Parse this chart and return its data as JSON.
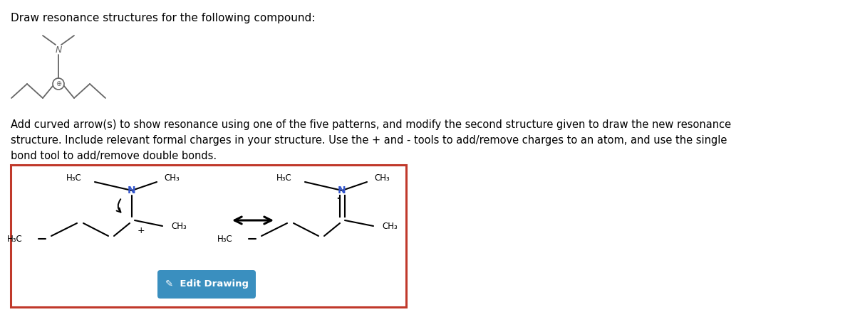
{
  "title_text": "Draw resonance structures for the following compound:",
  "body_text1": "Add curved arrow(s) to show resonance using one of the five patterns, and modify the second structure given to draw the new resonance",
  "body_text2": "structure. Include relevant formal charges in your structure. Use the + and - tools to add/remove charges to an atom, and use the single",
  "body_text3": "bond tool to add/remove double bonds.",
  "button_text": "Edit Drawing",
  "button_color": "#3a8fbf",
  "button_text_color": "#ffffff",
  "box_border_color": "#c0392b",
  "background_color": "#ffffff",
  "N_color": "#3355cc",
  "bond_color": "#000000",
  "text_color": "#000000",
  "small_mol_color": "#666666",
  "figsize": [
    12.0,
    4.46
  ],
  "dpi": 100
}
